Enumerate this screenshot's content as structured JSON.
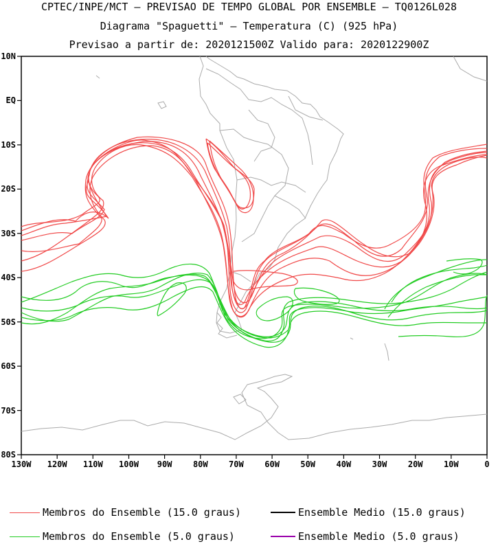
{
  "titles": {
    "line1": "CPTEC/INPE/MCT – PREVISAO DE TEMPO GLOBAL POR ENSEMBLE – TQ0126L028",
    "line2": "Diagrama \"Spaguetti\" – Temperatura (C) (925 hPa)",
    "line3": "Previsao a partir de: 2020121500Z   Valido para: 2020122900Z"
  },
  "axes": {
    "lat_labels": [
      "10N",
      "EQ",
      "10S",
      "20S",
      "30S",
      "40S",
      "50S",
      "60S",
      "70S",
      "80S"
    ],
    "lon_labels": [
      "130W",
      "120W",
      "110W",
      "100W",
      "90W",
      "80W",
      "70W",
      "60W",
      "50W",
      "40W",
      "30W",
      "20W",
      "10W",
      "0"
    ]
  },
  "legend": [
    {
      "label": "Membros do Ensemble (15.0 graus)",
      "color": "#f04848",
      "icon": "thin-line"
    },
    {
      "label": "Ensemble Medio (15.0 graus)",
      "color": "#000000",
      "icon": "thick-line"
    },
    {
      "label": "Membros do Ensemble (5.0 graus)",
      "color": "#22cc22",
      "icon": "thin-line"
    },
    {
      "label": "Ensemble Medio (5.0 graus)",
      "color": "#9900aa",
      "icon": "thick-line"
    }
  ],
  "colors": {
    "members_15": "#f04848",
    "members_5": "#22cc22",
    "coast": "#aaaaaa",
    "frame": "#000000"
  }
}
